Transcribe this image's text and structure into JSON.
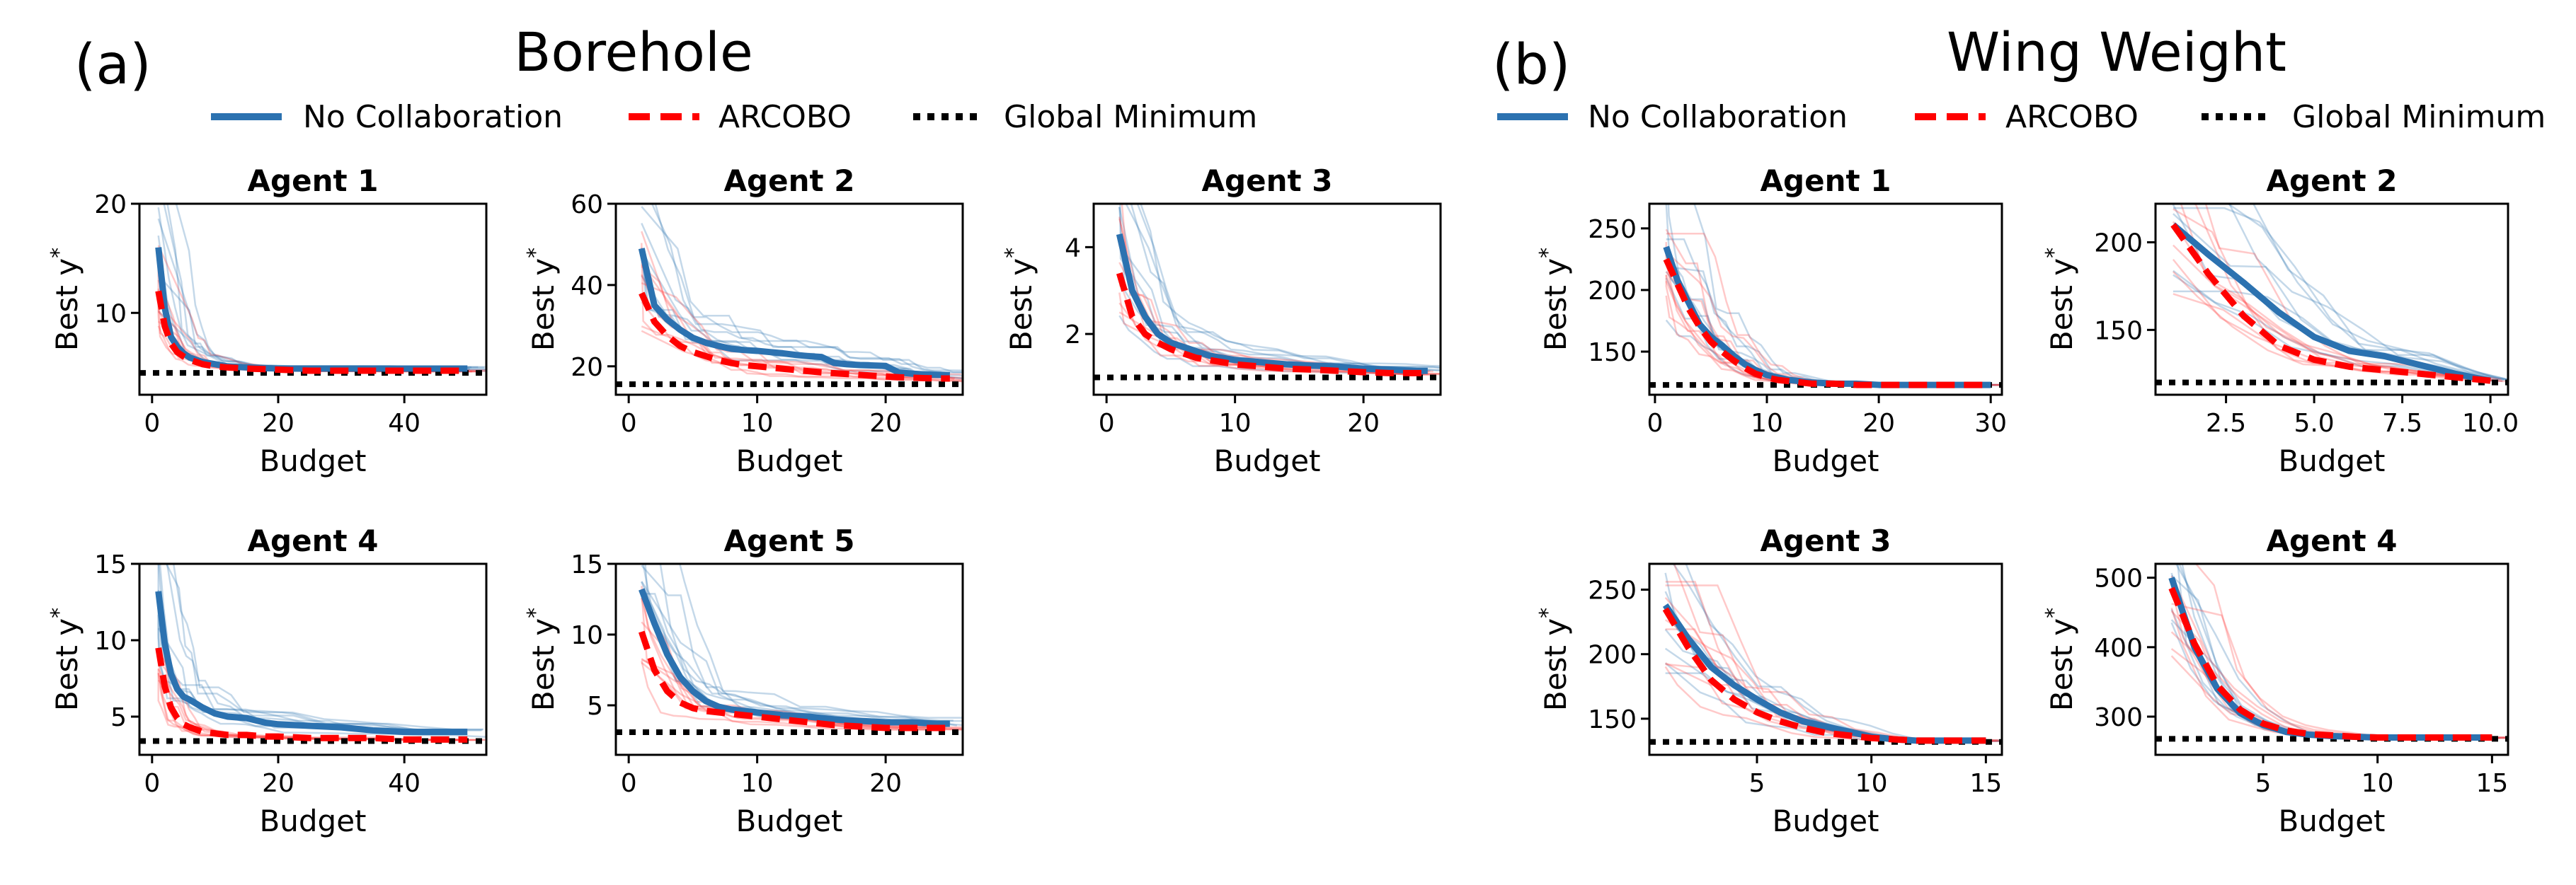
{
  "figure": {
    "groups": [
      {
        "panel_label": "(a)",
        "title": "Borehole",
        "legend": [
          {
            "label": "No Collaboration",
            "color": "#2c72b0",
            "style": "solid"
          },
          {
            "label": "ARCOBO",
            "color": "#ff0000",
            "style": "dashed"
          },
          {
            "label": "Global Minimum",
            "color": "#000000",
            "style": "dotted"
          }
        ]
      },
      {
        "panel_label": "(b)",
        "title": "Wing Weight",
        "legend": [
          {
            "label": "No Collaboration",
            "color": "#2c72b0",
            "style": "solid"
          },
          {
            "label": "ARCOBO",
            "color": "#ff0000",
            "style": "dashed"
          },
          {
            "label": "Global Minimum",
            "color": "#000000",
            "style": "dotted"
          }
        ]
      }
    ]
  },
  "chart_data": [
    {
      "type": "line",
      "group": "Borehole",
      "title": "Agent 1",
      "xlabel": "Budget",
      "ylabel": "Best y*",
      "xlim": [
        -2,
        53
      ],
      "ylim": [
        2.5,
        20
      ],
      "xticks": [
        0,
        20,
        40
      ],
      "yticks": [
        10,
        20
      ],
      "series": [
        {
          "name": "No Collaboration",
          "x": [
            1,
            2,
            3,
            4,
            5,
            6,
            8,
            10,
            12,
            15,
            20,
            25,
            30,
            35,
            40,
            45,
            50
          ],
          "values": [
            16,
            10.5,
            7.8,
            6.9,
            6.3,
            5.9,
            5.5,
            5.3,
            5.1,
            5.0,
            4.9,
            4.9,
            4.9,
            4.9,
            4.9,
            4.9,
            4.9
          ]
        },
        {
          "name": "ARCOBO",
          "x": [
            1,
            2,
            3,
            4,
            5,
            6,
            8,
            10,
            12,
            15,
            20,
            25,
            30,
            35,
            40,
            45,
            50
          ],
          "values": [
            12,
            8.8,
            7.2,
            6.4,
            6.0,
            5.7,
            5.3,
            5.1,
            5.0,
            4.9,
            4.8,
            4.7,
            4.7,
            4.7,
            4.7,
            4.7,
            4.7
          ]
        },
        {
          "name": "Global Minimum",
          "x": [
            -2,
            53
          ],
          "values": [
            4.5,
            4.5
          ]
        }
      ]
    },
    {
      "type": "line",
      "group": "Borehole",
      "title": "Agent 2",
      "xlabel": "Budget",
      "ylabel": "Best y*",
      "xlim": [
        -1,
        26
      ],
      "ylim": [
        13,
        60
      ],
      "xticks": [
        0,
        10,
        20
      ],
      "yticks": [
        20,
        40,
        60
      ],
      "series": [
        {
          "name": "No Collaboration",
          "x": [
            1,
            2,
            3,
            4,
            5,
            6,
            7,
            8,
            9,
            10,
            11,
            12,
            13,
            14,
            15,
            16,
            17,
            18,
            19,
            20,
            21,
            22,
            23,
            24,
            25
          ],
          "values": [
            49,
            35,
            31.5,
            29,
            27,
            25.8,
            25,
            24.3,
            24,
            23.8,
            23.5,
            23.2,
            22.8,
            22.5,
            22.3,
            20.8,
            20.5,
            20.3,
            20.2,
            20.1,
            18.5,
            18.2,
            18,
            17.9,
            17.8
          ]
        },
        {
          "name": "ARCOBO",
          "x": [
            1,
            2,
            3,
            4,
            5,
            6,
            7,
            8,
            9,
            10,
            11,
            12,
            13,
            14,
            15,
            16,
            17,
            18,
            19,
            20,
            21,
            22,
            23,
            24,
            25
          ],
          "values": [
            38,
            31,
            27.5,
            25,
            23.5,
            22.5,
            21.5,
            20.8,
            20.3,
            20,
            19.7,
            19.4,
            19.1,
            18.8,
            18.5,
            18.3,
            18.1,
            17.9,
            17.7,
            17.5,
            17.3,
            17.2,
            17.1,
            17,
            17
          ]
        },
        {
          "name": "Global Minimum",
          "x": [
            -1,
            26
          ],
          "values": [
            15.6,
            15.6
          ]
        }
      ]
    },
    {
      "type": "line",
      "group": "Borehole",
      "title": "Agent 3",
      "xlabel": "Budget",
      "ylabel": "Best y*",
      "xlim": [
        -1,
        26
      ],
      "ylim": [
        0.6,
        5
      ],
      "xticks": [
        0,
        10,
        20
      ],
      "yticks": [
        2,
        4
      ],
      "series": [
        {
          "name": "No Collaboration",
          "x": [
            1,
            2,
            3,
            4,
            5,
            6,
            7,
            8,
            9,
            10,
            12,
            14,
            16,
            18,
            20,
            22,
            24,
            25
          ],
          "values": [
            4.3,
            3.0,
            2.4,
            2.0,
            1.8,
            1.7,
            1.6,
            1.5,
            1.45,
            1.4,
            1.35,
            1.3,
            1.27,
            1.25,
            1.2,
            1.18,
            1.15,
            1.15
          ]
        },
        {
          "name": "ARCOBO",
          "x": [
            1,
            2,
            3,
            4,
            5,
            6,
            7,
            8,
            9,
            10,
            12,
            14,
            16,
            18,
            20,
            22,
            24,
            25
          ],
          "values": [
            3.4,
            2.4,
            2.0,
            1.8,
            1.65,
            1.55,
            1.45,
            1.4,
            1.35,
            1.3,
            1.25,
            1.2,
            1.18,
            1.15,
            1.12,
            1.1,
            1.1,
            1.1
          ]
        },
        {
          "name": "Global Minimum",
          "x": [
            -1,
            26
          ],
          "values": [
            1.0,
            1.0
          ]
        }
      ]
    },
    {
      "type": "line",
      "group": "Borehole",
      "title": "Agent 4",
      "xlabel": "Budget",
      "ylabel": "Best y*",
      "xlim": [
        -2,
        53
      ],
      "ylim": [
        2.5,
        15
      ],
      "xticks": [
        0,
        20,
        40
      ],
      "yticks": [
        5,
        10,
        15
      ],
      "series": [
        {
          "name": "No Collaboration",
          "x": [
            1,
            2,
            3,
            4,
            5,
            6,
            8,
            10,
            12,
            15,
            18,
            20,
            25,
            30,
            35,
            40,
            45,
            50
          ],
          "values": [
            13.2,
            9.8,
            7.8,
            6.8,
            6.3,
            6.1,
            5.6,
            5.2,
            5.0,
            4.9,
            4.6,
            4.5,
            4.4,
            4.3,
            4.1,
            4.0,
            4.0,
            4.0
          ]
        },
        {
          "name": "ARCOBO",
          "x": [
            1,
            2,
            3,
            4,
            5,
            6,
            8,
            10,
            12,
            15,
            18,
            20,
            25,
            30,
            35,
            40,
            45,
            50
          ],
          "values": [
            9.5,
            7.0,
            5.6,
            4.9,
            4.5,
            4.3,
            4.0,
            3.9,
            3.8,
            3.8,
            3.7,
            3.7,
            3.6,
            3.6,
            3.6,
            3.5,
            3.5,
            3.5
          ]
        },
        {
          "name": "Global Minimum",
          "x": [
            -2,
            53
          ],
          "values": [
            3.4,
            3.4
          ]
        }
      ]
    },
    {
      "type": "line",
      "group": "Borehole",
      "title": "Agent 5",
      "xlabel": "Budget",
      "ylabel": "Best y*",
      "xlim": [
        -1,
        26
      ],
      "ylim": [
        1.5,
        15
      ],
      "xticks": [
        0,
        10,
        20
      ],
      "yticks": [
        5,
        10,
        15
      ],
      "series": [
        {
          "name": "No Collaboration",
          "x": [
            1,
            2,
            3,
            4,
            5,
            6,
            7,
            8,
            10,
            12,
            14,
            16,
            18,
            20,
            22,
            24,
            25
          ],
          "values": [
            13.2,
            10.8,
            8.6,
            7.0,
            6.0,
            5.3,
            4.9,
            4.7,
            4.5,
            4.3,
            4.2,
            4.0,
            3.9,
            3.8,
            3.8,
            3.7,
            3.7
          ]
        },
        {
          "name": "ARCOBO",
          "x": [
            1,
            2,
            3,
            4,
            5,
            6,
            7,
            8,
            10,
            12,
            14,
            16,
            18,
            20,
            22,
            24,
            25
          ],
          "values": [
            10.2,
            7.5,
            6.0,
            5.2,
            4.8,
            4.6,
            4.5,
            4.4,
            4.2,
            4.0,
            3.8,
            3.6,
            3.5,
            3.4,
            3.4,
            3.4,
            3.4
          ]
        },
        {
          "name": "Global Minimum",
          "x": [
            -1,
            26
          ],
          "values": [
            3.1,
            3.1
          ]
        }
      ]
    },
    {
      "type": "line",
      "group": "Wing Weight",
      "title": "Agent 1",
      "xlabel": "Budget",
      "ylabel": "Best y*",
      "xlim": [
        -0.5,
        31
      ],
      "ylim": [
        115,
        270
      ],
      "xticks": [
        0,
        10,
        20,
        30
      ],
      "yticks": [
        150,
        200,
        250
      ],
      "series": [
        {
          "name": "No Collaboration",
          "x": [
            1,
            2,
            3,
            4,
            5,
            6,
            7,
            8,
            9,
            10,
            11,
            12,
            14,
            16,
            18,
            20,
            22,
            24,
            26,
            28,
            30
          ],
          "values": [
            235,
            208,
            190,
            172,
            162,
            155,
            147,
            140,
            135,
            131,
            129,
            127,
            125,
            124,
            124,
            123,
            123,
            123,
            123,
            123,
            123
          ]
        },
        {
          "name": "ARCOBO",
          "x": [
            1,
            2,
            3,
            4,
            5,
            6,
            7,
            8,
            9,
            10,
            11,
            12,
            14,
            16,
            18,
            20,
            22,
            24,
            26,
            28,
            30
          ],
          "values": [
            225,
            205,
            185,
            170,
            158,
            150,
            143,
            137,
            132,
            129,
            127,
            126,
            124,
            124,
            123,
            123,
            123,
            123,
            123,
            123,
            123
          ]
        },
        {
          "name": "Global Minimum",
          "x": [
            -0.5,
            31
          ],
          "values": [
            123,
            123
          ]
        }
      ]
    },
    {
      "type": "line",
      "group": "Wing Weight",
      "title": "Agent 2",
      "xlabel": "Budget",
      "ylabel": "Best y*",
      "xlim": [
        0.5,
        10.5
      ],
      "ylim": [
        113,
        222
      ],
      "xticks": [
        2.5,
        5.0,
        7.5,
        10.0
      ],
      "yticks": [
        150,
        200
      ],
      "series": [
        {
          "name": "No Collaboration",
          "x": [
            1,
            2,
            3,
            4,
            5,
            6,
            7,
            8,
            9,
            10
          ],
          "values": [
            210,
            193,
            177,
            160,
            146,
            138,
            135,
            130,
            125,
            121
          ]
        },
        {
          "name": "ARCOBO",
          "x": [
            1,
            2,
            3,
            4,
            5,
            6,
            7,
            8,
            9,
            10
          ],
          "values": [
            210,
            182,
            158,
            141,
            133,
            129,
            127,
            125,
            123,
            121
          ]
        },
        {
          "name": "Global Minimum",
          "x": [
            0.5,
            10.5
          ],
          "values": [
            120,
            120
          ]
        }
      ]
    },
    {
      "type": "line",
      "group": "Wing Weight",
      "title": "Agent 3",
      "xlabel": "Budget",
      "ylabel": "Best y*",
      "xlim": [
        0.3,
        15.7
      ],
      "ylim": [
        122,
        270
      ],
      "xticks": [
        5,
        10,
        15
      ],
      "yticks": [
        150,
        200,
        250
      ],
      "series": [
        {
          "name": "No Collaboration",
          "x": [
            1,
            2,
            3,
            4,
            5,
            6,
            7,
            8,
            9,
            10,
            11,
            12,
            13,
            14,
            15
          ],
          "values": [
            238,
            212,
            190,
            176,
            165,
            155,
            148,
            144,
            140,
            136,
            134,
            133,
            133,
            133,
            133
          ]
        },
        {
          "name": "ARCOBO",
          "x": [
            1,
            2,
            3,
            4,
            5,
            6,
            7,
            8,
            9,
            10,
            11,
            12,
            13,
            14,
            15
          ],
          "values": [
            235,
            205,
            180,
            165,
            155,
            148,
            143,
            139,
            137,
            135,
            134,
            133,
            133,
            133,
            133
          ]
        },
        {
          "name": "Global Minimum",
          "x": [
            0.3,
            15.7
          ],
          "values": [
            132,
            132
          ]
        }
      ]
    },
    {
      "type": "line",
      "group": "Wing Weight",
      "title": "Agent 4",
      "xlabel": "Budget",
      "ylabel": "Best y*",
      "xlim": [
        0.3,
        15.7
      ],
      "ylim": [
        245,
        520
      ],
      "xticks": [
        5,
        10,
        15
      ],
      "yticks": [
        300,
        400,
        500
      ],
      "series": [
        {
          "name": "No Collaboration",
          "x": [
            1,
            2,
            3,
            4,
            5,
            6,
            7,
            8,
            9,
            10,
            11,
            12,
            13,
            14,
            15
          ],
          "values": [
            500,
            400,
            340,
            305,
            288,
            278,
            274,
            272,
            271,
            270,
            270,
            270,
            270,
            270,
            270
          ]
        },
        {
          "name": "ARCOBO",
          "x": [
            1,
            2,
            3,
            4,
            5,
            6,
            7,
            8,
            9,
            10,
            11,
            12,
            13,
            14,
            15
          ],
          "values": [
            485,
            405,
            345,
            310,
            290,
            280,
            275,
            273,
            271,
            270,
            270,
            270,
            270,
            270,
            270
          ]
        },
        {
          "name": "Global Minimum",
          "x": [
            0.3,
            15.7
          ],
          "values": [
            268,
            268
          ]
        }
      ]
    }
  ]
}
